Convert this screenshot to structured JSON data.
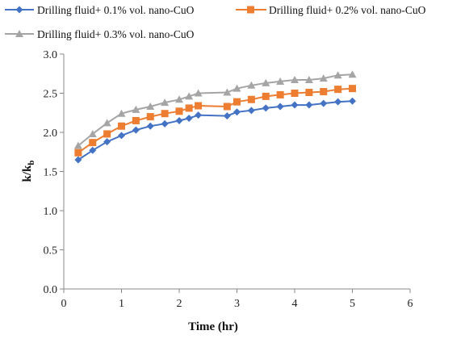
{
  "chart_data": {
    "type": "line",
    "xlabel": "Time (hr)",
    "ylabel": "k/k",
    "ylabel_subscript": "b",
    "xlim": [
      0,
      6
    ],
    "ylim": [
      0.0,
      3.0
    ],
    "x_ticks": [
      "0",
      "1",
      "2",
      "3",
      "4",
      "5",
      "6"
    ],
    "y_ticks": [
      "0.0",
      "0.5",
      "1.0",
      "1.5",
      "2.0",
      "2.5",
      "3.0"
    ],
    "grid": false,
    "legend_position": "top",
    "x": [
      0.25,
      0.5,
      0.75,
      1.0,
      1.25,
      1.5,
      1.75,
      2.0,
      2.17,
      2.33,
      2.83,
      3.0,
      3.25,
      3.5,
      3.75,
      4.0,
      4.25,
      4.5,
      4.75,
      5.0
    ],
    "series": [
      {
        "name": "Drilling fluid+ 0.1% vol. nano-CuO",
        "color": "#4472C4",
        "marker": "diamond",
        "values": [
          1.65,
          1.77,
          1.88,
          1.96,
          2.03,
          2.08,
          2.11,
          2.15,
          2.18,
          2.22,
          2.21,
          2.26,
          2.28,
          2.31,
          2.33,
          2.35,
          2.35,
          2.37,
          2.39,
          2.4
        ]
      },
      {
        "name": "Drilling fluid+ 0.2% vol. nano-CuO",
        "color": "#ED7D31",
        "marker": "square",
        "values": [
          1.74,
          1.87,
          1.98,
          2.08,
          2.15,
          2.2,
          2.24,
          2.27,
          2.31,
          2.34,
          2.33,
          2.39,
          2.42,
          2.46,
          2.48,
          2.5,
          2.51,
          2.52,
          2.55,
          2.56
        ]
      },
      {
        "name": "Drilling fluid+ 0.3% vol. nano-CuO",
        "color": "#A5A5A5",
        "marker": "triangle",
        "values": [
          1.83,
          1.98,
          2.12,
          2.24,
          2.29,
          2.33,
          2.38,
          2.42,
          2.46,
          2.5,
          2.51,
          2.56,
          2.6,
          2.63,
          2.65,
          2.67,
          2.67,
          2.69,
          2.73,
          2.74
        ]
      }
    ]
  }
}
